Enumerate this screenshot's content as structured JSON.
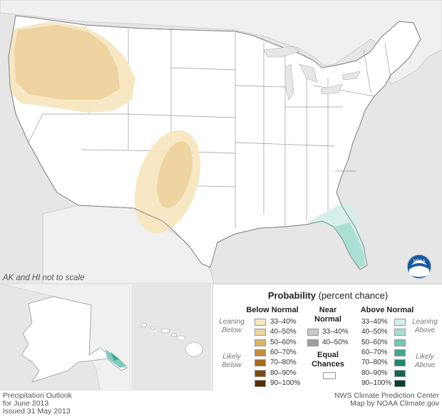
{
  "map": {
    "scale_note": "AK and HI not to scale"
  },
  "legend": {
    "title_bold": "Probability",
    "title_rest": " (percent chance)",
    "below": {
      "heading": "Below Normal",
      "leaning": "Leaning",
      "leaning2": "Below",
      "likely": "Likely",
      "likely2": "Below",
      "items": [
        {
          "label": "33–40%",
          "color": "#f7e6c0"
        },
        {
          "label": "40–50%",
          "color": "#ecd39f"
        },
        {
          "label": "50–60%",
          "color": "#d9b36a"
        },
        {
          "label": "60–70%",
          "color": "#c58d38"
        },
        {
          "label": "70–80%",
          "color": "#a46a1e"
        },
        {
          "label": "80–90%",
          "color": "#7d4a10"
        },
        {
          "label": "90–100%",
          "color": "#552d05"
        }
      ]
    },
    "near": {
      "heading1": "Near",
      "heading2": "Normal",
      "items": [
        {
          "label": "33–40%",
          "color": "#c8c8c8"
        },
        {
          "label": "40–50%",
          "color": "#9e9e9e"
        }
      ],
      "equal1": "Equal",
      "equal2": "Chances"
    },
    "above": {
      "heading": "Above Normal",
      "leaning": "Leaning",
      "leaning2": "Above",
      "likely": "Likely",
      "likely2": "Above",
      "items": [
        {
          "label": "33–40%",
          "color": "#d3efe9"
        },
        {
          "label": "40–50%",
          "color": "#a7ded1"
        },
        {
          "label": "50–60%",
          "color": "#75c6b4"
        },
        {
          "label": "60–70%",
          "color": "#3fa890"
        },
        {
          "label": "70–80%",
          "color": "#228870"
        },
        {
          "label": "80–90%",
          "color": "#136652"
        },
        {
          "label": "90–100%",
          "color": "#063f31"
        }
      ]
    }
  },
  "footer": {
    "left1": "Precipitation Outlook",
    "left2": "for June 2013",
    "left3": "Issued 31 May 2013",
    "right1": "NWS Climate Prediction Center",
    "right2": "Map by NOAA Climate.gov"
  },
  "logo": {
    "text": "NOAA"
  },
  "colors": {
    "ocean": "#e6e6e6",
    "land": "#ffffff",
    "border": "#9a9a9a"
  }
}
